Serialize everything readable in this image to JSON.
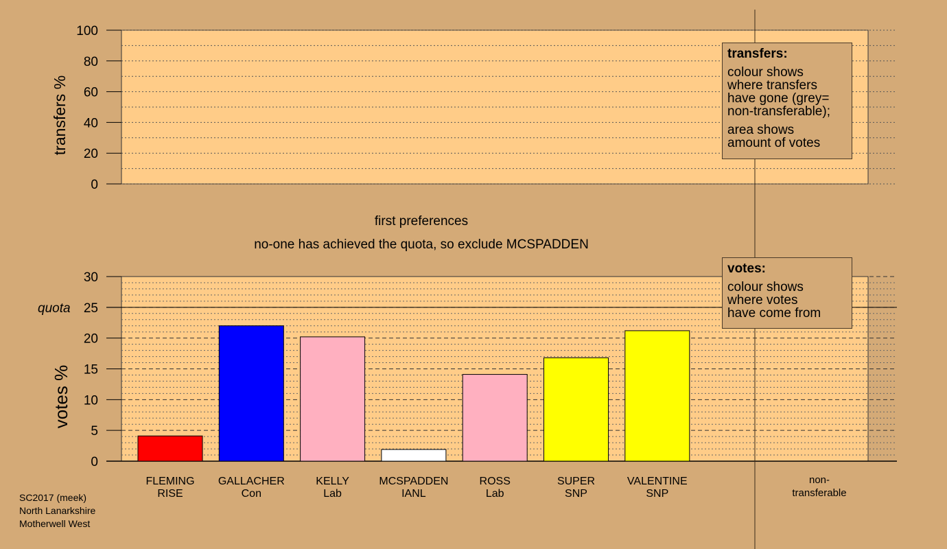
{
  "colors": {
    "background": "#d4aa77",
    "plot_area": "#ffcc88",
    "party": {
      "RISE": "#ff0000",
      "Con": "#0000ff",
      "Lab": "#ffb0c0",
      "IANL": "#ffffff",
      "SNP": "#ffff00"
    }
  },
  "stage_text": "first preferences",
  "exclusion_text": "no-one has achieved the quota, so exclude MCSPADDEN",
  "transfers_legend": {
    "title": "transfers:",
    "lines1": [
      "colour shows",
      "where transfers",
      "have gone (grey=",
      "non-transferable);"
    ],
    "lines2": [
      "area shows",
      "amount of votes"
    ]
  },
  "votes_legend": {
    "title": "votes:",
    "lines1": [
      "colour shows",
      "where votes",
      "have come from"
    ]
  },
  "footer": [
    "SC2017 (meek)",
    "North Lanarkshire",
    "Motherwell West"
  ],
  "chart_data": [
    {
      "type": "bar",
      "ylabel": "transfers %",
      "ylim": [
        0,
        100
      ],
      "yticks": [
        "0",
        "20",
        "40",
        "60",
        "80",
        "100"
      ],
      "values": [],
      "grid": true
    },
    {
      "type": "bar",
      "ylabel": "votes %",
      "ylim": [
        0,
        30
      ],
      "yticks": [
        "0",
        "5",
        "10",
        "15",
        "20",
        "25",
        "30"
      ],
      "quota_label": "quota",
      "quota": 25,
      "grid": true,
      "categories": [
        {
          "name": "FLEMING",
          "party": "RISE"
        },
        {
          "name": "GALLACHER",
          "party": "Con"
        },
        {
          "name": "KELLY",
          "party": "Lab"
        },
        {
          "name": "MCSPADDEN",
          "party": "IANL"
        },
        {
          "name": "ROSS",
          "party": "Lab"
        },
        {
          "name": "SUPER",
          "party": "SNP"
        },
        {
          "name": "VALENTINE",
          "party": "SNP"
        }
      ],
      "values": [
        4.1,
        22.0,
        20.2,
        1.9,
        14.1,
        16.8,
        21.2
      ],
      "extra_category": [
        "non-",
        "transferable"
      ]
    }
  ]
}
